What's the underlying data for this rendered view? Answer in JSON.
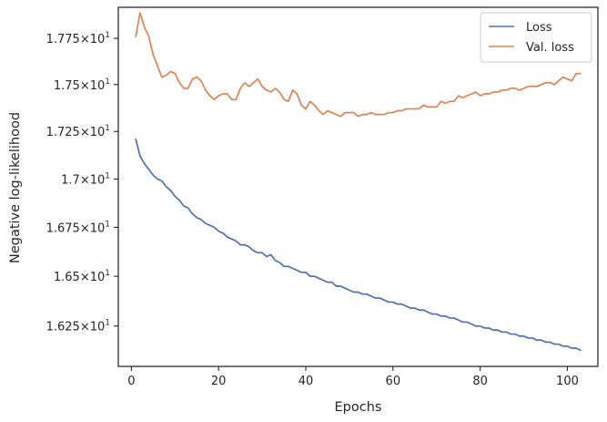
{
  "chart_data": {
    "type": "line",
    "title": "",
    "xlabel": "Epochs",
    "ylabel": "Negative log-likelihood",
    "xlim": [
      -3,
      107
    ],
    "ylim": [
      16.05,
      17.92
    ],
    "yscale": "log",
    "grid": false,
    "legend_position": "top-right",
    "x_ticks": [
      {
        "value": 0,
        "label": "0"
      },
      {
        "value": 20,
        "label": "20"
      },
      {
        "value": 40,
        "label": "40"
      },
      {
        "value": 60,
        "label": "60"
      },
      {
        "value": 80,
        "label": "80"
      },
      {
        "value": 100,
        "label": "100"
      }
    ],
    "y_ticks": [
      {
        "value": 16.25,
        "mantissa": "1.625"
      },
      {
        "value": 16.5,
        "mantissa": "1.65"
      },
      {
        "value": 16.75,
        "mantissa": "1.675"
      },
      {
        "value": 17.0,
        "mantissa": "1.7"
      },
      {
        "value": 17.25,
        "mantissa": "1.725"
      },
      {
        "value": 17.5,
        "mantissa": "1.75"
      },
      {
        "value": 17.75,
        "mantissa": "1.775"
      }
    ],
    "y_tick_base": "10",
    "y_tick_exponent": "1",
    "x": [
      1,
      2,
      3,
      4,
      5,
      6,
      7,
      8,
      9,
      10,
      11,
      12,
      13,
      14,
      15,
      16,
      17,
      18,
      19,
      20,
      21,
      22,
      23,
      24,
      25,
      26,
      27,
      28,
      29,
      30,
      31,
      32,
      33,
      34,
      35,
      36,
      37,
      38,
      39,
      40,
      41,
      42,
      43,
      44,
      45,
      46,
      47,
      48,
      49,
      50,
      51,
      52,
      53,
      54,
      55,
      56,
      57,
      58,
      59,
      60,
      61,
      62,
      63,
      64,
      65,
      66,
      67,
      68,
      69,
      70,
      71,
      72,
      73,
      74,
      75,
      76,
      77,
      78,
      79,
      80,
      81,
      82,
      83,
      84,
      85,
      86,
      87,
      88,
      89,
      90,
      91,
      92,
      93,
      94,
      95,
      96,
      97,
      98,
      99,
      100,
      101,
      102,
      103
    ],
    "series": [
      {
        "name": "Loss",
        "color": "#4c72b0",
        "values": [
          17.21,
          17.12,
          17.08,
          17.05,
          17.02,
          17.0,
          16.99,
          16.96,
          16.94,
          16.91,
          16.89,
          16.86,
          16.85,
          16.82,
          16.8,
          16.79,
          16.77,
          16.76,
          16.75,
          16.73,
          16.72,
          16.7,
          16.69,
          16.68,
          16.66,
          16.66,
          16.65,
          16.63,
          16.62,
          16.62,
          16.6,
          16.61,
          16.58,
          16.57,
          16.55,
          16.55,
          16.54,
          16.53,
          16.52,
          16.52,
          16.5,
          16.5,
          16.49,
          16.48,
          16.47,
          16.47,
          16.45,
          16.45,
          16.44,
          16.43,
          16.42,
          16.42,
          16.41,
          16.41,
          16.4,
          16.39,
          16.39,
          16.38,
          16.37,
          16.37,
          16.36,
          16.36,
          16.35,
          16.34,
          16.34,
          16.33,
          16.33,
          16.32,
          16.31,
          16.31,
          16.3,
          16.3,
          16.29,
          16.29,
          16.28,
          16.27,
          16.27,
          16.26,
          16.25,
          16.25,
          16.24,
          16.24,
          16.23,
          16.23,
          16.22,
          16.22,
          16.21,
          16.21,
          16.2,
          16.2,
          16.19,
          16.19,
          16.18,
          16.18,
          16.17,
          16.17,
          16.16,
          16.16,
          16.15,
          16.15,
          16.14,
          16.14,
          16.13
        ]
      },
      {
        "name": "Val. loss",
        "color": "#dd8452",
        "values": [
          17.76,
          17.89,
          17.81,
          17.76,
          17.66,
          17.6,
          17.54,
          17.55,
          17.57,
          17.56,
          17.51,
          17.48,
          17.48,
          17.53,
          17.54,
          17.52,
          17.47,
          17.44,
          17.42,
          17.44,
          17.45,
          17.45,
          17.42,
          17.42,
          17.48,
          17.51,
          17.49,
          17.51,
          17.53,
          17.49,
          17.47,
          17.46,
          17.48,
          17.46,
          17.42,
          17.41,
          17.47,
          17.45,
          17.39,
          17.37,
          17.41,
          17.39,
          17.36,
          17.34,
          17.36,
          17.35,
          17.34,
          17.33,
          17.35,
          17.35,
          17.35,
          17.33,
          17.34,
          17.34,
          17.35,
          17.34,
          17.34,
          17.34,
          17.35,
          17.35,
          17.36,
          17.36,
          17.37,
          17.37,
          17.37,
          17.37,
          17.39,
          17.38,
          17.38,
          17.38,
          17.41,
          17.4,
          17.41,
          17.41,
          17.44,
          17.43,
          17.44,
          17.45,
          17.46,
          17.44,
          17.45,
          17.45,
          17.46,
          17.46,
          17.47,
          17.47,
          17.48,
          17.48,
          17.47,
          17.48,
          17.49,
          17.49,
          17.49,
          17.5,
          17.51,
          17.51,
          17.5,
          17.52,
          17.54,
          17.53,
          17.52,
          17.56,
          17.56
        ]
      }
    ]
  }
}
